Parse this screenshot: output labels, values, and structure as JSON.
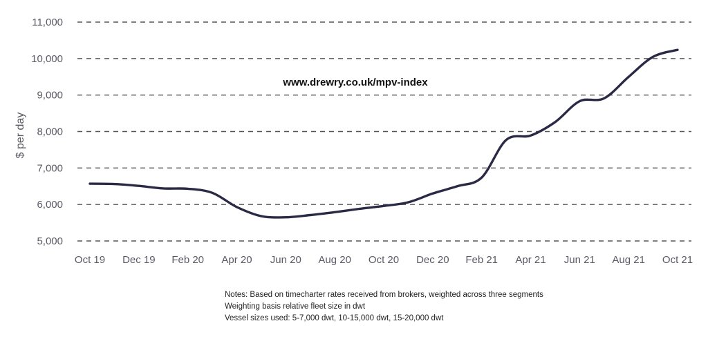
{
  "chart_data": {
    "type": "line",
    "watermark": "www.drewry.co.uk/mpv-index",
    "xlabel": "",
    "ylabel": "$ per day",
    "ylim": [
      5000,
      11000
    ],
    "yticks": [
      "5,000",
      "6,000",
      "7,000",
      "8,000",
      "9,000",
      "10,000",
      "11,000"
    ],
    "xticks": [
      "Oct 19",
      "Dec 19",
      "Feb 20",
      "Apr 20",
      "Jun 20",
      "Aug 20",
      "Oct 20",
      "Dec 20",
      "Feb 21",
      "Apr 21",
      "Jun 21",
      "Aug 21",
      "Oct 21"
    ],
    "grid": "horizontal dashed",
    "line_color": "#2b2a45",
    "series": [
      {
        "x": [
          "Oct 19",
          "Nov 19",
          "Dec 19",
          "Jan 20",
          "Feb 20",
          "Mar 20",
          "Apr 20",
          "May 20",
          "Jun 20",
          "Jul 20",
          "Aug 20",
          "Sep 20",
          "Oct 20",
          "Nov 20",
          "Dec 20",
          "Jan 21",
          "Feb 21",
          "Mar 21",
          "Apr 21",
          "May 21",
          "Jun 21",
          "Jul 21",
          "Aug 21",
          "Sep 21",
          "Oct 21"
        ],
        "values": [
          6570,
          6560,
          6510,
          6440,
          6430,
          6320,
          5930,
          5680,
          5650,
          5710,
          5790,
          5880,
          5960,
          6060,
          6300,
          6500,
          6740,
          7770,
          7890,
          8260,
          8830,
          8910,
          9500,
          10050,
          10240
        ]
      }
    ],
    "notes": [
      "Notes: Based on timecharter rates received from brokers, weighted across three segments",
      "Weighting basis relative fleet size in dwt",
      "Vessel sizes used: 5-7,000 dwt, 10-15,000 dwt, 15-20,000 dwt"
    ]
  }
}
